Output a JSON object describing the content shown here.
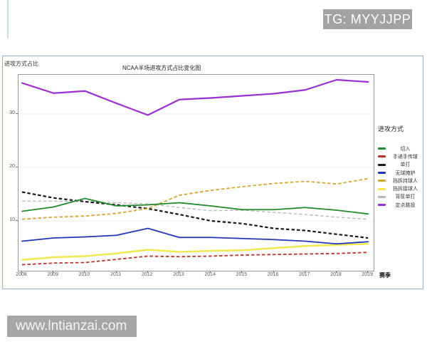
{
  "watermarks": {
    "tg_badge": "TG: MYYJJPP",
    "site_badge": "www.lntianzai.com"
  },
  "chart_data": {
    "type": "line",
    "title": "NCAA半场进攻方式占比变化图",
    "ylabel": "进攻方式占比",
    "xlabel": "赛季",
    "legend_title": "进攻方式",
    "legend_position": "right-outside",
    "grid": "faint horizontal lines at y ticks",
    "x": [
      2008,
      2009,
      2010,
      2011,
      2012,
      2013,
      2014,
      2015,
      2016,
      2017,
      2018,
      2019
    ],
    "yticks": [
      10,
      20,
      30
    ],
    "ylim": [
      0.7,
      37.3
    ],
    "series": [
      {
        "id": "cut",
        "name": "切入",
        "color": "#1f8b2c",
        "line_style": "solid",
        "values": [
          11.8,
          12.6,
          14.2,
          12.8,
          13.0,
          13.4,
          12.8,
          12.1,
          12.1,
          12.5,
          12.0,
          11.3
        ]
      },
      {
        "id": "handoff-pass",
        "name": "手递手传球",
        "color": "#c03028",
        "line_style": "dashed",
        "values": [
          1.8,
          2.1,
          2.2,
          2.8,
          3.4,
          3.3,
          3.4,
          3.6,
          3.7,
          3.8,
          3.9,
          4.1
        ]
      },
      {
        "id": "isolation",
        "name": "单打",
        "color": "#1a1a1a",
        "line_style": "dashed",
        "values": [
          15.4,
          14.3,
          13.6,
          13.0,
          12.3,
          11.2,
          10.0,
          9.5,
          8.6,
          8.2,
          7.5,
          6.8
        ]
      },
      {
        "id": "off-ball-screen",
        "name": "无球掩护",
        "color": "#2236b4",
        "line_style": "solid",
        "values": [
          6.2,
          6.8,
          7.0,
          7.3,
          8.6,
          6.9,
          6.9,
          6.7,
          6.5,
          6.2,
          5.7,
          6.1
        ]
      },
      {
        "id": "pnr-ball-handler",
        "name": "挡拆持球人",
        "color": "#d6a52a",
        "line_style": "dashed",
        "values": [
          10.3,
          10.7,
          10.9,
          11.4,
          12.3,
          14.8,
          15.7,
          16.4,
          17.0,
          17.4,
          16.9,
          17.9
        ]
      },
      {
        "id": "pnr-roll-man",
        "name": "挡拆接球人",
        "color": "#f2e94e",
        "line_style": "solid",
        "values": [
          2.7,
          3.2,
          3.4,
          3.9,
          4.6,
          4.2,
          4.4,
          4.5,
          4.9,
          5.3,
          5.5,
          5.7
        ]
      },
      {
        "id": "post-up",
        "name": "背筐单打",
        "color": "#b5b5b5",
        "line_style": "dashed",
        "values": [
          13.7,
          13.7,
          13.6,
          13.4,
          13.2,
          12.5,
          11.9,
          12.0,
          11.6,
          11.2,
          10.7,
          10.3
        ]
      },
      {
        "id": "spot-up",
        "name": "定点跳投",
        "color": "#9a2fd0",
        "line_style": "solid",
        "values": [
          35.8,
          33.9,
          34.3,
          32.0,
          29.8,
          32.7,
          33.0,
          33.4,
          33.8,
          34.5,
          36.4,
          36.0
        ]
      }
    ]
  }
}
